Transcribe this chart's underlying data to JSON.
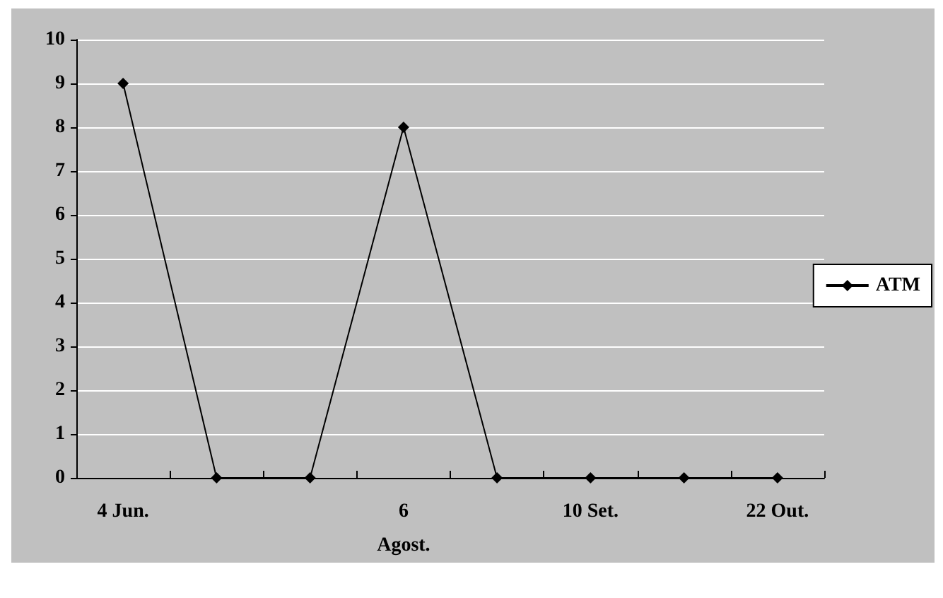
{
  "chart_data": {
    "type": "line",
    "categories": [
      "4 Jun.",
      null,
      null,
      "6\nAgost.",
      null,
      "10 Set.",
      null,
      "22 Out."
    ],
    "series": [
      {
        "name": "ATM",
        "color": "#000000",
        "values": [
          9,
          0,
          0,
          8,
          0,
          0,
          0,
          0
        ]
      }
    ],
    "ylim": [
      0,
      10
    ],
    "yticks": [
      0,
      1,
      2,
      3,
      4,
      5,
      6,
      7,
      8,
      9,
      10
    ],
    "grid": "y",
    "legend": "right",
    "marker": "diamond",
    "line_style": "solid"
  }
}
